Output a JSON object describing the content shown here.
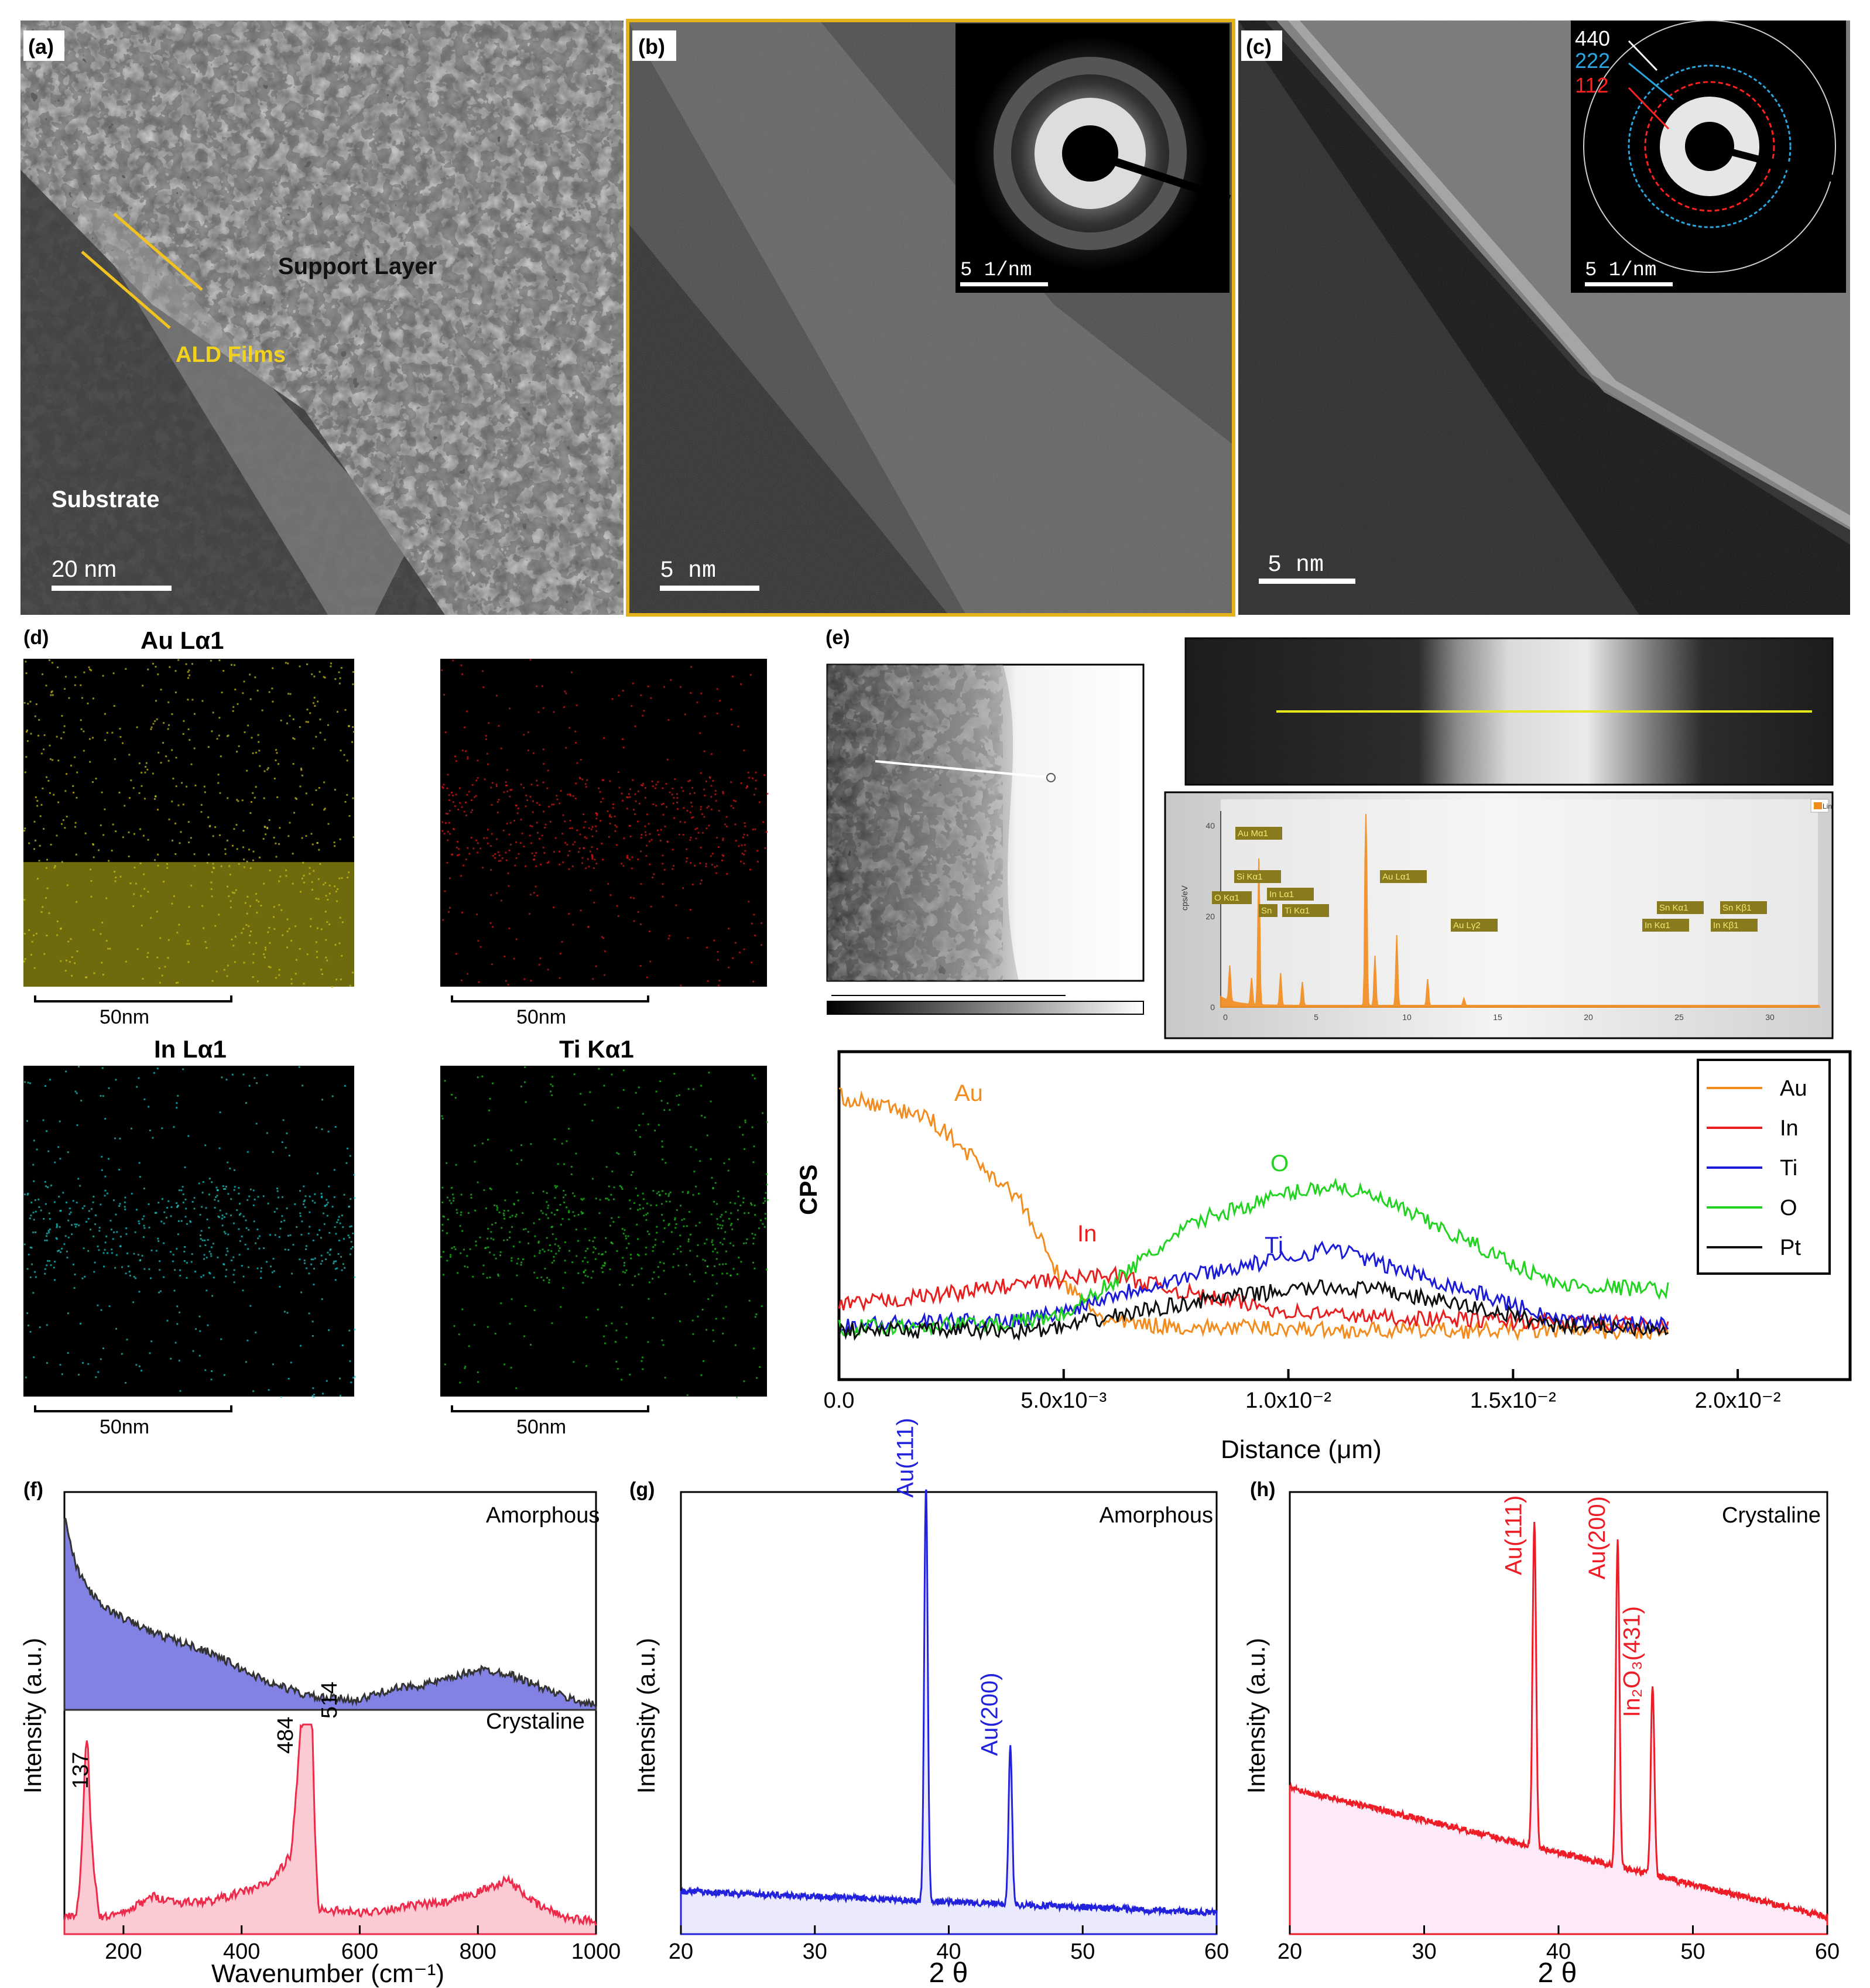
{
  "panel_a": {
    "letter": "(a)",
    "labels": {
      "support": "Support Layer",
      "ald": "ALD Films",
      "substrate": "Substrate"
    },
    "scale": "20  nm"
  },
  "panel_b": {
    "letter": "(b)",
    "scale": "5  nm",
    "inset_scale": "5  1/nm"
  },
  "panel_c": {
    "letter": "(c)",
    "scale": "5  nm",
    "inset_scale": "5  1/nm",
    "rings": [
      {
        "label": "440",
        "color": "#ffffff"
      },
      {
        "label": "222",
        "color": "#2aa7e0"
      },
      {
        "label": "112",
        "color": "#ff2020"
      }
    ]
  },
  "panel_d": {
    "letter": "(d)",
    "maps": [
      {
        "title": "Au Lα1",
        "scale": "50nm",
        "color": "#c9c21c",
        "band": "bottom"
      },
      {
        "title": "",
        "scale": "50nm",
        "color": "#d81818",
        "band": "middle"
      },
      {
        "title": "In Lα1",
        "scale": "50nm",
        "color": "#1ec9c9",
        "band": "middle"
      },
      {
        "title": "Ti Kα1",
        "scale": "50nm",
        "color": "#1ec81e",
        "band": "middle"
      }
    ]
  },
  "panel_e": {
    "letter": "(e)",
    "spectrum": {
      "y_label": "cps/eV",
      "y_ticks": [
        "0",
        "20",
        "40"
      ],
      "x_ticks": [
        "0",
        "5",
        "10",
        "15",
        "20",
        "25",
        "30"
      ],
      "legend": "Lin",
      "peaks": [
        "Au Mα1",
        "Si Kα1",
        "In Lα1",
        "Sn",
        "Ti Kα1",
        "O Kα1",
        "Au Lα1",
        "Au Lγ2",
        "Sn Kα1",
        "In Kα1",
        "Sn Kβ1",
        "In Kβ1"
      ]
    }
  },
  "chart_data": [
    {
      "type": "line",
      "panel": "(e) line profile",
      "xlabel": "Distance (μm)",
      "ylabel": "CPS",
      "xlim": [
        0,
        0.0225
      ],
      "x_ticks": [
        "0.0",
        "5.0x10⁻³",
        "1.0x10⁻²",
        "1.5x10⁻²",
        "2.0x10⁻²"
      ],
      "legend_position": "top-right",
      "x": [
        0.0,
        0.002,
        0.004,
        0.005,
        0.006,
        0.008,
        0.01,
        0.011,
        0.012,
        0.014,
        0.016,
        0.0185
      ],
      "series": [
        {
          "name": "Au",
          "color": "#f28c1e",
          "values": [
            0.9,
            0.82,
            0.52,
            0.2,
            0.06,
            0.04,
            0.04,
            0.03,
            0.03,
            0.03,
            0.03,
            0.02
          ]
        },
        {
          "name": "In",
          "color": "#e81f1f",
          "values": [
            0.12,
            0.16,
            0.2,
            0.22,
            0.24,
            0.16,
            0.1,
            0.09,
            0.08,
            0.07,
            0.06,
            0.05
          ]
        },
        {
          "name": "Ti",
          "color": "#1b1bd8",
          "values": [
            0.05,
            0.06,
            0.07,
            0.1,
            0.16,
            0.24,
            0.3,
            0.34,
            0.28,
            0.18,
            0.07,
            0.05
          ]
        },
        {
          "name": "O",
          "color": "#22d322",
          "values": [
            0.04,
            0.05,
            0.06,
            0.09,
            0.2,
            0.44,
            0.54,
            0.57,
            0.52,
            0.36,
            0.2,
            0.18
          ]
        },
        {
          "name": "Pt",
          "color": "#111111",
          "values": [
            0.03,
            0.03,
            0.03,
            0.04,
            0.08,
            0.14,
            0.18,
            0.19,
            0.18,
            0.12,
            0.05,
            0.04
          ]
        }
      ],
      "annotations": [
        {
          "text": "Au",
          "color": "#f28c1e"
        },
        {
          "text": "In",
          "color": "#e81f1f"
        },
        {
          "text": "O",
          "color": "#22d322"
        },
        {
          "text": "Ti",
          "color": "#1b1bd8"
        }
      ]
    },
    {
      "type": "area",
      "panel": "(f)",
      "xlabel": "Wavenumber (cm⁻¹)",
      "ylabel": "Intensity (a.u.)",
      "xlim": [
        100,
        1000
      ],
      "x_ticks": [
        "200",
        "400",
        "600",
        "800",
        "1000"
      ],
      "x": [
        100,
        120,
        140,
        160,
        200,
        250,
        300,
        350,
        400,
        450,
        484,
        500,
        514,
        530,
        600,
        650,
        700,
        750,
        800,
        850,
        900,
        950,
        1000
      ],
      "series": [
        {
          "name": "Amorphous",
          "color": "#6c6ce0",
          "values": [
            0.95,
            0.7,
            0.6,
            0.52,
            0.45,
            0.38,
            0.33,
            0.28,
            0.2,
            0.13,
            0.1,
            0.08,
            0.07,
            0.06,
            0.05,
            0.1,
            0.12,
            0.15,
            0.2,
            0.18,
            0.12,
            0.06,
            0.02
          ]
        },
        {
          "name": "Crystaline",
          "color": "#ee2a4a",
          "values": [
            0.08,
            0.1,
            0.52,
            0.08,
            0.1,
            0.18,
            0.15,
            0.16,
            0.2,
            0.25,
            0.38,
            0.95,
            0.8,
            0.12,
            0.1,
            0.12,
            0.14,
            0.15,
            0.2,
            0.26,
            0.14,
            0.08,
            0.06
          ]
        }
      ],
      "annotations": [
        "137",
        "484",
        "514"
      ]
    },
    {
      "type": "line",
      "panel": "(g)",
      "title": "Amorphous",
      "xlabel": "2 θ",
      "ylabel": "Intensity (a.u.)",
      "xlim": [
        20,
        60
      ],
      "x_ticks": [
        "20",
        "30",
        "40",
        "50",
        "60"
      ],
      "peaks": [
        {
          "label": "Au(111)",
          "x": 38.3,
          "height": 0.98
        },
        {
          "label": "Au(200)",
          "x": 44.6,
          "height": 0.38
        }
      ],
      "baseline": [
        0.1,
        0.05
      ],
      "color": "#2222dd"
    },
    {
      "type": "line",
      "panel": "(h)",
      "title": "Crystaline",
      "xlabel": "2 θ",
      "ylabel": "Intensity (a.u.)",
      "xlim": [
        20,
        60
      ],
      "x_ticks": [
        "20",
        "30",
        "40",
        "50",
        "60"
      ],
      "peaks": [
        {
          "label": "Au(111)",
          "x": 38.2,
          "height": 0.8
        },
        {
          "label": "Au(200)",
          "x": 44.4,
          "height": 0.79
        },
        {
          "label": "In₂O₃(431)",
          "x": 47.0,
          "height": 0.47
        }
      ],
      "baseline": [
        0.34,
        0.04
      ],
      "color": "#ee1c25"
    }
  ]
}
